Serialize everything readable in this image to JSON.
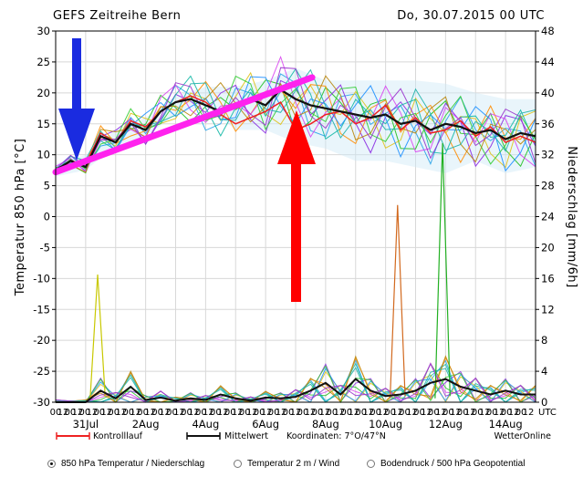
{
  "header": {
    "title": "GEFS Zeitreihe Bern",
    "run_date": "Do, 30.07.2015 00 UTC"
  },
  "footer": {
    "legend_control": "Kontrolllauf",
    "legend_mean": "Mittelwert",
    "coordinates": "Koordinaten: 7°O/47°N",
    "brand": "WetterOnline",
    "tick_suffix": "UTC"
  },
  "options": [
    {
      "label": "850 hPa Temperatur / Niederschlag",
      "selected": true
    },
    {
      "label": "Temperatur 2 m / Wind",
      "selected": false
    },
    {
      "label": "Bodendruck / 500 hPa Geopotential",
      "selected": false
    }
  ],
  "colors": {
    "control": "#ee2222",
    "mean": "#111111",
    "trend_line": "#ff22ee",
    "arrow_down": "#1a2be0",
    "arrow_up": "#ff0000",
    "grid": "#d8d8d8"
  },
  "chart_data": {
    "type": "line",
    "ylabel": "Temperatur 850 hPa [°C]",
    "y2label": "Niederschlag [mm/6h]",
    "ylim": [
      -30,
      30
    ],
    "y2lim": [
      0,
      48
    ],
    "yticks": [
      30,
      25,
      20,
      15,
      10,
      5,
      0,
      -5,
      -10,
      -15,
      -20,
      -25,
      -30
    ],
    "y2ticks": [
      48,
      44,
      40,
      36,
      32,
      28,
      24,
      20,
      16,
      12,
      8,
      4,
      0
    ],
    "grid": true,
    "x_hour_ticks": [
      "00",
      "12",
      "00",
      "12",
      "00",
      "12",
      "00",
      "12",
      "00",
      "12",
      "00",
      "12",
      "00",
      "12",
      "00",
      "12",
      "00",
      "12",
      "00",
      "12",
      "00",
      "12",
      "00",
      "12",
      "00",
      "12",
      "00",
      "12",
      "00",
      "12",
      "00",
      "12",
      "00",
      "12",
      "00",
      "12",
      "00",
      "12",
      "00",
      "12",
      "00",
      "12",
      "00",
      "12",
      "00",
      "12",
      "00",
      "12",
      "00",
      "12",
      "00",
      "12",
      "00",
      "12",
      "00",
      "12",
      "00",
      "12",
      "00",
      "12",
      "00",
      "12",
      "00",
      "12",
      "00",
      "12"
    ],
    "day_labels": [
      {
        "label": "31Jul",
        "day": 1
      },
      {
        "label": "2Aug",
        "day": 3
      },
      {
        "label": "4Aug",
        "day": 5
      },
      {
        "label": "6Aug",
        "day": 7
      },
      {
        "label": "8Aug",
        "day": 9
      },
      {
        "label": "10Aug",
        "day": 11
      },
      {
        "label": "12Aug",
        "day": 13
      },
      {
        "label": "14Aug",
        "day": 15
      }
    ],
    "mean_temperature": {
      "name": "Mittelwert",
      "day": [
        0,
        0.5,
        1,
        1.5,
        2,
        2.5,
        3,
        3.5,
        4,
        4.5,
        5,
        5.5,
        6,
        6.5,
        7,
        7.5,
        8,
        8.5,
        9,
        9.5,
        10,
        10.5,
        11,
        11.5,
        12,
        12.5,
        13,
        13.5,
        14,
        14.5,
        15,
        15.5,
        16
      ],
      "values": [
        7.5,
        9,
        8,
        13,
        12,
        15,
        14,
        17,
        18.5,
        19,
        18,
        17,
        18,
        19,
        18,
        20.5,
        19,
        18,
        17.5,
        17,
        16.5,
        16,
        16.5,
        15,
        15.5,
        14,
        15,
        14.5,
        13.5,
        14,
        12.5,
        13.5,
        13
      ]
    },
    "control_temperature": {
      "name": "Kontrolllauf",
      "day": [
        0,
        0.5,
        1,
        1.5,
        2,
        2.5,
        3,
        3.5,
        4,
        4.5,
        5,
        5.5,
        6,
        6.5,
        7,
        7.5,
        8,
        8.5,
        9,
        9.5,
        10,
        10.5,
        11,
        11.5,
        12,
        12.5,
        13,
        13.5,
        14,
        14.5,
        15,
        15.5,
        16
      ],
      "values": [
        7,
        9,
        8.5,
        13.5,
        12,
        15.5,
        14.5,
        17,
        18.5,
        19.5,
        18.5,
        16.5,
        15,
        16,
        17,
        18.5,
        14,
        15,
        16.5,
        17,
        15,
        16,
        18,
        14,
        16,
        13.5,
        14,
        15.5,
        13,
        14.5,
        12,
        13,
        12
      ]
    },
    "mean_precipitation": {
      "name": "Mittelwert",
      "day": [
        0,
        1,
        1.5,
        2,
        2.5,
        3,
        3.5,
        4,
        4.5,
        5,
        5.5,
        6,
        6.5,
        7,
        7.5,
        8,
        8.5,
        9,
        9.5,
        10,
        10.5,
        11,
        11.5,
        12,
        12.5,
        13,
        13.5,
        14,
        14.5,
        15,
        15.5,
        16
      ],
      "values": [
        0,
        0,
        1.5,
        0.5,
        2,
        0.3,
        0.6,
        0.2,
        0.5,
        0.3,
        1.0,
        0.5,
        0.2,
        0.6,
        0.5,
        0.7,
        1.5,
        2.5,
        1.0,
        3.0,
        1.5,
        0.8,
        1.0,
        1.5,
        2.5,
        3.0,
        2.0,
        1.5,
        1.0,
        1.5,
        1.0,
        1.0
      ]
    },
    "precip_peaks": [
      {
        "day": 1.4,
        "value": 16.5
      },
      {
        "day": 11.4,
        "value": 25.5
      },
      {
        "day": 12.9,
        "value": 33.5
      }
    ],
    "spread_upper": {
      "day": [
        0,
        1,
        2,
        3,
        4,
        5,
        6,
        7,
        8,
        9,
        10,
        11,
        12,
        13,
        14,
        15,
        16
      ],
      "values": [
        8.5,
        10,
        14,
        16,
        19.5,
        21,
        21,
        22,
        24,
        22,
        22,
        22,
        22,
        21.5,
        20,
        19,
        19
      ]
    },
    "spread_lower": {
      "day": [
        0,
        1,
        2,
        3,
        4,
        5,
        6,
        7,
        8,
        9,
        10,
        11,
        12,
        13,
        14,
        15,
        16
      ],
      "values": [
        6.5,
        7.5,
        11.5,
        13,
        16.5,
        18,
        14,
        14,
        12,
        11,
        9,
        9,
        8,
        7,
        9,
        7,
        8
      ]
    }
  }
}
